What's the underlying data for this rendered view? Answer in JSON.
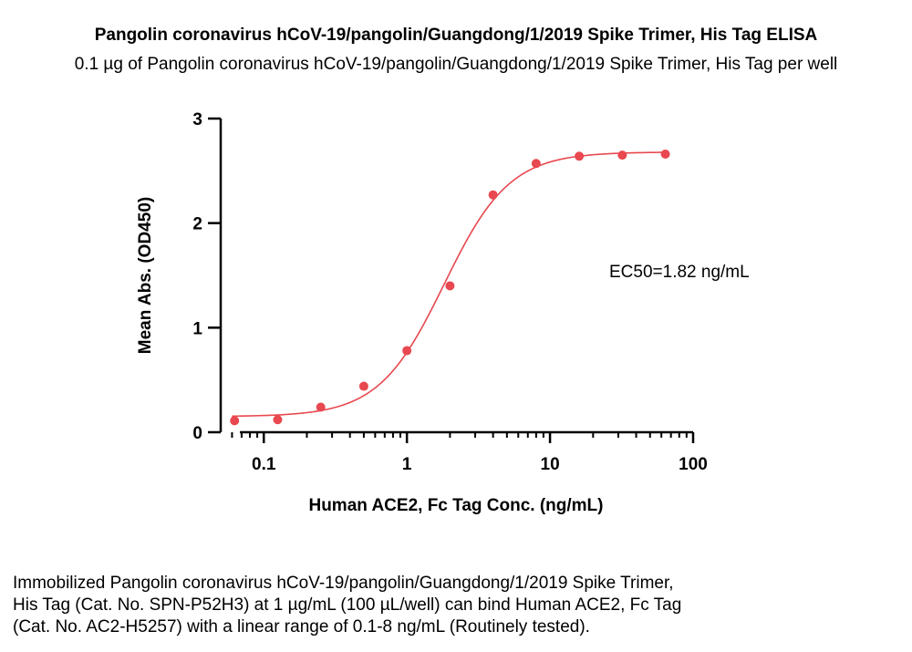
{
  "header": {
    "title": "Pangolin coronavirus hCoV-19/pangolin/Guangdong/1/2019 Spike Trimer, His Tag ELISA",
    "subtitle": "0.1 µg of Pangolin coronavirus hCoV-19/pangolin/Guangdong/1/2019 Spike Trimer, His Tag per well"
  },
  "caption": {
    "lines": [
      "Immobilized Pangolin coronavirus hCoV-19/pangolin/Guangdong/1/2019 Spike Trimer,",
      "His Tag (Cat. No. SPN-P52H3) at 1 µg/mL (100 µL/well) can bind Human ACE2, Fc Tag",
      "(Cat. No. AC2-H5257) with a linear range of 0.1-8 ng/mL (Routinely tested)."
    ]
  },
  "chart_data": {
    "type": "scatter",
    "xlabel": "Human ACE2, Fc Tag Conc. (ng/mL)",
    "ylabel": "Mean Abs. (OD450)",
    "xscale": "log",
    "xlim": [
      0.05,
      100
    ],
    "ylim": [
      0,
      3
    ],
    "x_ticks": [
      0.1,
      1,
      10,
      100
    ],
    "x_tick_labels": [
      "0.1",
      "1",
      "10",
      "100"
    ],
    "y_ticks": [
      0,
      1,
      2,
      3
    ],
    "y_tick_labels": [
      "0",
      "1",
      "2",
      "3"
    ],
    "annotation": "EC50=1.82 ng/mL",
    "color": "#e8484f",
    "grid": false,
    "series": [
      {
        "x": [
          0.0625,
          0.125,
          0.25,
          0.5,
          1,
          2,
          4,
          8,
          16,
          32,
          64
        ],
        "y": [
          0.11,
          0.12,
          0.24,
          0.44,
          0.78,
          1.4,
          2.27,
          2.57,
          2.64,
          2.65,
          2.66
        ]
      }
    ],
    "fit_curve": {
      "model": "4PL",
      "bottom": 0.15,
      "top": 2.68,
      "ec50": 1.82,
      "hill": 1.9
    }
  }
}
